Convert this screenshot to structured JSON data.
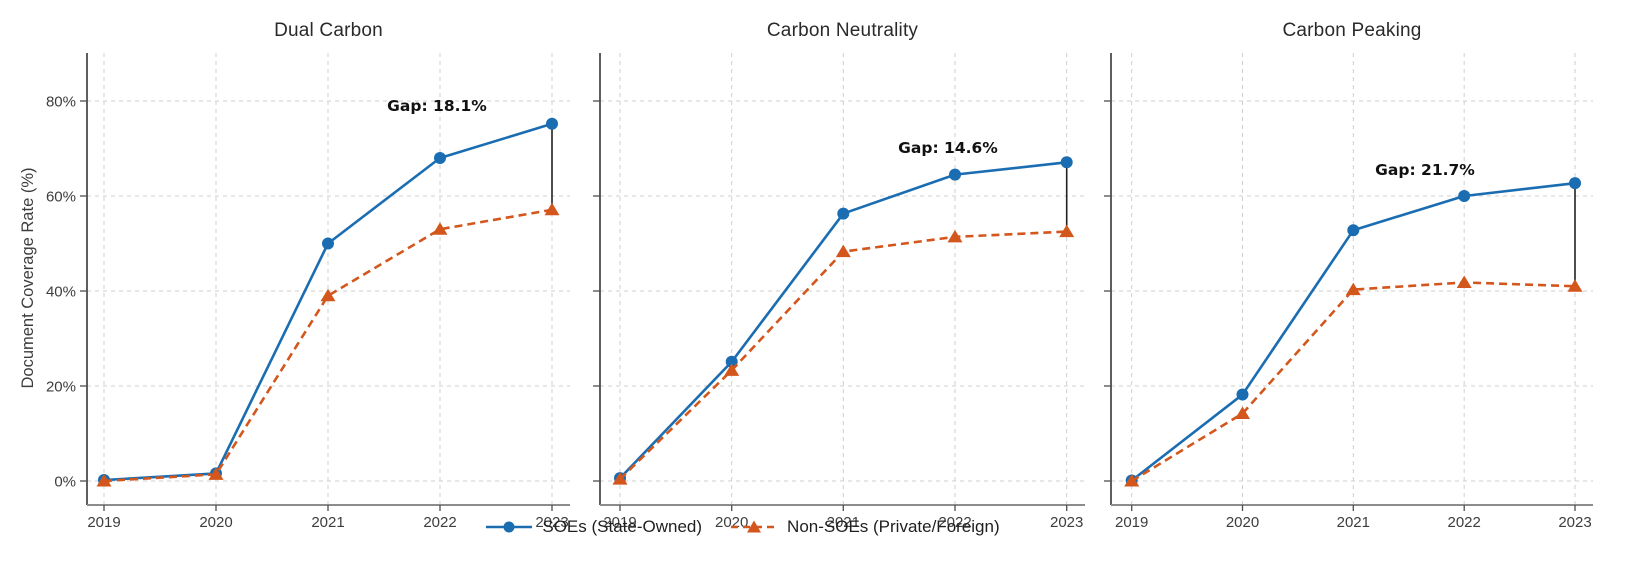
{
  "figure": {
    "ylabel": "Document Coverage Rate (%)",
    "xlabel": "",
    "y_ticks": [
      "0%",
      "20%",
      "40%",
      "60%",
      "80%"
    ],
    "legend": [
      {
        "name": "SOEs (State-Owned)",
        "marker": "circle",
        "line": "solid"
      },
      {
        "name": "Non-SOEs (Private/Foreign)",
        "marker": "triangle",
        "line": "dashed"
      }
    ],
    "legend_position": "bottom-center",
    "colors": {
      "soe": "#1b6db2",
      "nonsoe": "#d3571d",
      "gap_line": "#222222",
      "gap_text": "#111111",
      "grid": "#cfcfcf",
      "spine_left": "#4d4d4d",
      "spine_bottom": "#8c8c8c",
      "tick_label": "#3d3d3d",
      "title": "#2a2a2a"
    }
  },
  "chart_data": [
    {
      "type": "line",
      "title": "Dual Carbon",
      "x": [
        2019,
        2020,
        2021,
        2022,
        2023
      ],
      "series": [
        {
          "name": "SOEs (State-Owned)",
          "values": [
            0.2,
            1.6,
            50.0,
            68.0,
            75.2
          ]
        },
        {
          "name": "Non-SOEs (Private/Foreign)",
          "values": [
            0.0,
            1.4,
            39.0,
            53.0,
            57.1
          ]
        }
      ],
      "gap_annotation": "Gap: 18.1%",
      "ylim": [
        -5,
        90
      ],
      "grid": true
    },
    {
      "type": "line",
      "title": "Carbon Neutrality",
      "x": [
        2019,
        2020,
        2021,
        2022,
        2023
      ],
      "series": [
        {
          "name": "SOEs (State-Owned)",
          "values": [
            0.6,
            25.1,
            56.3,
            64.5,
            67.1
          ]
        },
        {
          "name": "Non-SOEs (Private/Foreign)",
          "values": [
            0.4,
            23.3,
            48.3,
            51.4,
            52.5
          ]
        }
      ],
      "gap_annotation": "Gap: 14.6%",
      "ylim": [
        -5,
        90
      ],
      "grid": true
    },
    {
      "type": "line",
      "title": "Carbon Peaking",
      "x": [
        2019,
        2020,
        2021,
        2022,
        2023
      ],
      "series": [
        {
          "name": "SOEs (State-Owned)",
          "values": [
            0.1,
            18.2,
            52.8,
            60.0,
            62.7
          ]
        },
        {
          "name": "Non-SOEs (Private/Foreign)",
          "values": [
            0.0,
            14.2,
            40.3,
            41.8,
            41.0
          ]
        }
      ],
      "gap_annotation": "Gap: 21.7%",
      "ylim": [
        -5,
        90
      ],
      "grid": true
    }
  ]
}
